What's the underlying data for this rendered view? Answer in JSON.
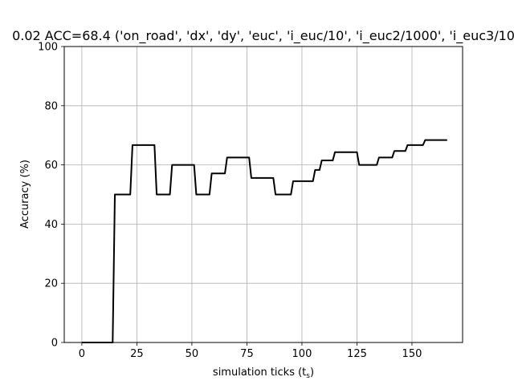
{
  "chart_data": {
    "type": "line",
    "title": "0.02 ACC=68.4 ('on_road', 'dx', 'dy', 'euc', 'i_euc/10', 'i_euc2/1000', 'i_euc3/10",
    "xlabel": "simulation ticks (t",
    "xlabel_sub": "s",
    "xlabel_end": ")",
    "ylabel": "Accuracy (%)",
    "xlim": [
      -8,
      173
    ],
    "ylim": [
      0,
      100
    ],
    "xticks": [
      0,
      25,
      50,
      75,
      100,
      125,
      150
    ],
    "yticks": [
      0,
      20,
      40,
      60,
      80,
      100
    ],
    "grid": true,
    "series": [
      {
        "color": "#000000",
        "x": [
          0,
          14,
          14.5,
          15,
          22,
          23,
          33,
          34,
          40,
          41,
          51,
          52,
          58,
          59,
          65,
          66,
          76,
          77,
          87,
          88,
          95,
          96,
          105,
          106,
          108,
          109,
          114,
          115,
          125,
          126,
          134,
          135,
          141,
          142,
          147,
          148,
          155,
          156,
          166
        ],
        "y": [
          0,
          0,
          25,
          50,
          50,
          66.7,
          66.7,
          50,
          50,
          60,
          60,
          50,
          50,
          57.1,
          57.1,
          62.5,
          62.5,
          55.6,
          55.6,
          50,
          50,
          54.5,
          54.5,
          58.3,
          58.3,
          61.5,
          61.5,
          64.3,
          64.3,
          60,
          60,
          62.5,
          62.5,
          64.7,
          64.7,
          66.7,
          66.7,
          68.4,
          68.4
        ]
      }
    ]
  }
}
